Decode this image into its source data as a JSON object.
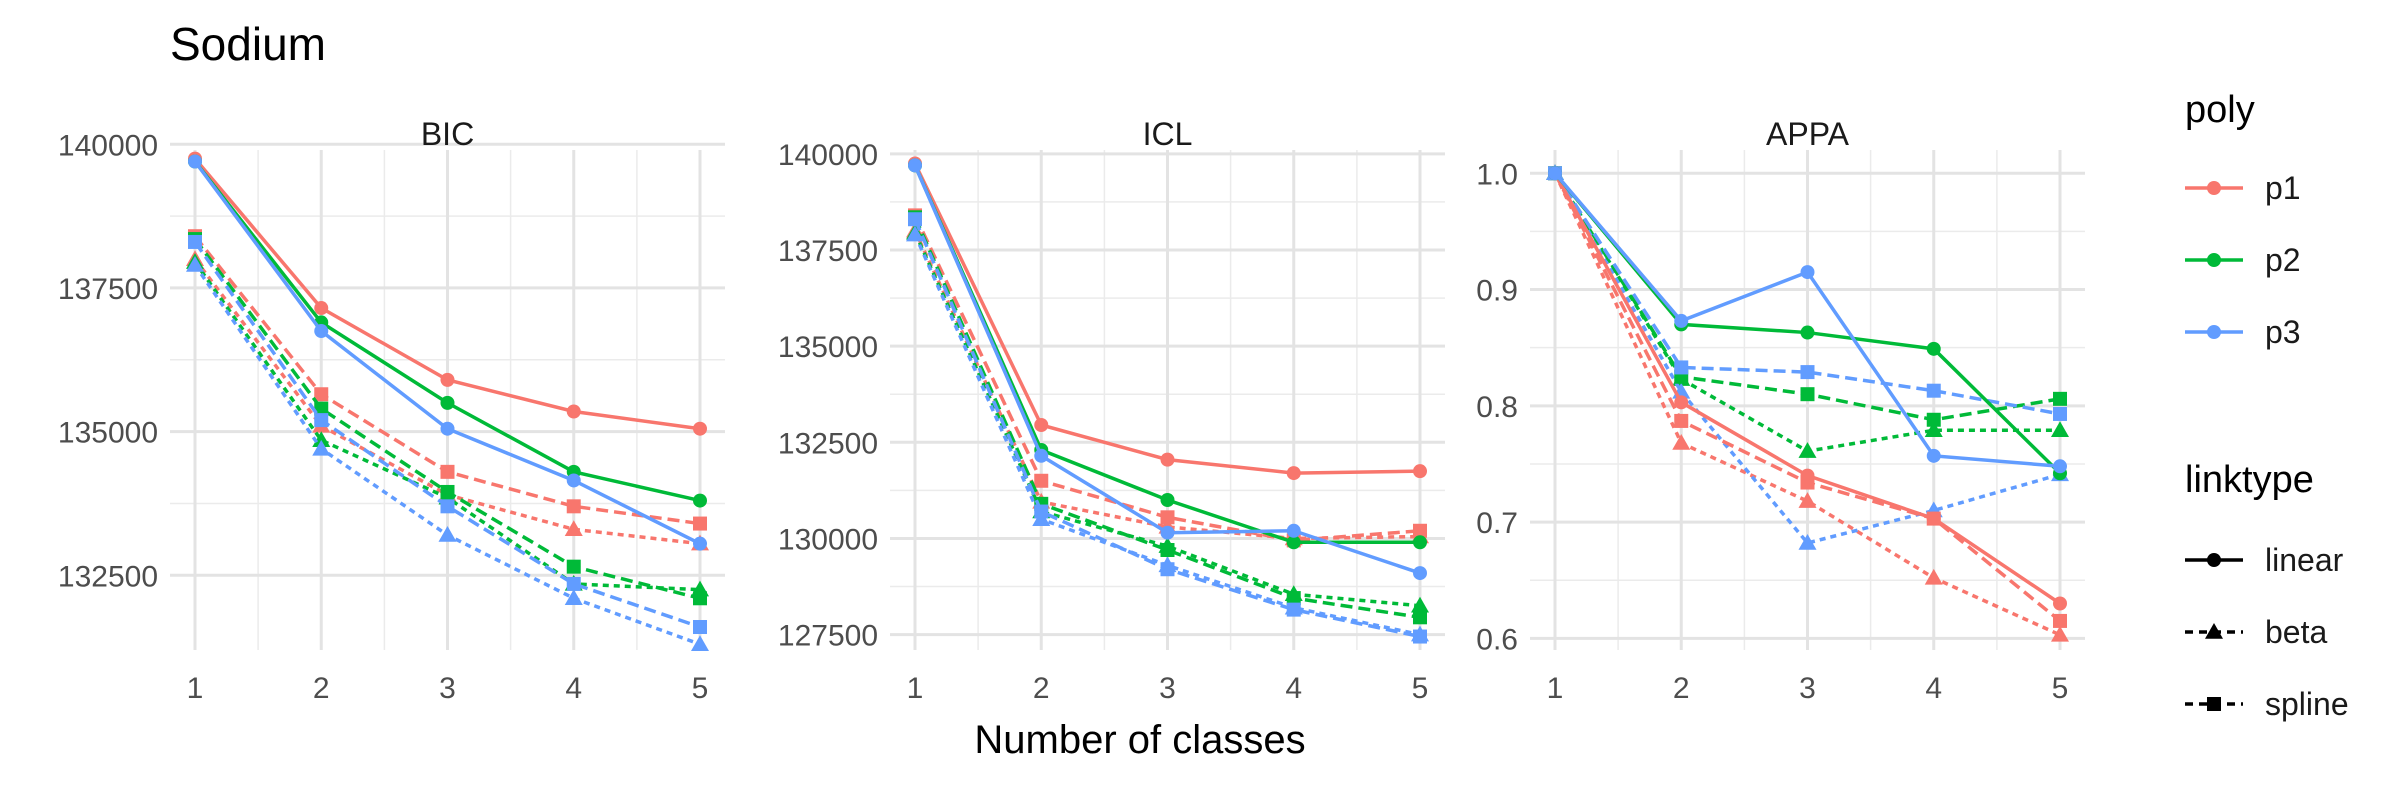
{
  "chart_data": {
    "type": "line",
    "title": "Sodium",
    "xlabel": "Number of classes",
    "x": [
      1,
      2,
      3,
      4,
      5
    ],
    "x_ticks": [
      "1",
      "2",
      "3",
      "4",
      "5"
    ],
    "grid": true,
    "colors": {
      "p1": "#F8766D",
      "p2": "#00BA38",
      "p3": "#619CFF"
    },
    "legend": {
      "placement": "right",
      "poly_title": "poly",
      "poly_items": [
        {
          "key": "p1",
          "label": "p1"
        },
        {
          "key": "p2",
          "label": "p2"
        },
        {
          "key": "p3",
          "label": "p3"
        }
      ],
      "link_title": "linktype",
      "link_items": [
        {
          "key": "linear",
          "label": "linear",
          "dash": "solid",
          "shape": "circle"
        },
        {
          "key": "beta",
          "label": "beta",
          "dash": "dashed",
          "shape": "triangle"
        },
        {
          "key": "spline",
          "label": "spline",
          "dash": "dashed",
          "shape": "square"
        }
      ]
    },
    "panels": [
      {
        "name": "BIC",
        "ylim": [
          131200,
          139900
        ],
        "y_ticks": [
          132500,
          135000,
          137500,
          140000
        ],
        "y_tick_labels": [
          "132500",
          "135000",
          "137500",
          "140000"
        ],
        "series": [
          {
            "poly": "p1",
            "link": "linear",
            "values": [
              139750,
              137150,
              135900,
              135350,
              135050
            ]
          },
          {
            "poly": "p2",
            "link": "linear",
            "values": [
              139700,
              136900,
              135500,
              134300,
              133800
            ]
          },
          {
            "poly": "p3",
            "link": "linear",
            "values": [
              139700,
              136750,
              135050,
              134150,
              133050
            ]
          },
          {
            "poly": "p1",
            "link": "beta",
            "values": [
              138000,
              135100,
              133900,
              133300,
              133050
            ]
          },
          {
            "poly": "p2",
            "link": "beta",
            "values": [
              137950,
              134850,
              133850,
              132350,
              132250
            ]
          },
          {
            "poly": "p3",
            "link": "beta",
            "values": [
              137900,
              134700,
              133200,
              132100,
              131300
            ]
          },
          {
            "poly": "p1",
            "link": "spline",
            "values": [
              138400,
              135650,
              134300,
              133700,
              133400
            ]
          },
          {
            "poly": "p2",
            "link": "spline",
            "values": [
              138350,
              135400,
              133950,
              132650,
              132100
            ]
          },
          {
            "poly": "p3",
            "link": "spline",
            "values": [
              138300,
              135200,
              133700,
              132350,
              131600
            ]
          }
        ]
      },
      {
        "name": "ICL",
        "ylim": [
          127100,
          140100
        ],
        "y_ticks": [
          127500,
          130000,
          132500,
          135000,
          137500,
          140000
        ],
        "y_tick_labels": [
          "127500",
          "130000",
          "132500",
          "135000",
          "137500",
          "140000"
        ],
        "series": [
          {
            "poly": "p1",
            "link": "linear",
            "values": [
              139750,
              132950,
              132050,
              131700,
              131750
            ]
          },
          {
            "poly": "p2",
            "link": "linear",
            "values": [
              139700,
              132300,
              131000,
              129900,
              129900
            ]
          },
          {
            "poly": "p3",
            "link": "linear",
            "values": [
              139700,
              132150,
              130150,
              130200,
              129100
            ]
          },
          {
            "poly": "p1",
            "link": "beta",
            "values": [
              138000,
              130950,
              130300,
              130000,
              130050
            ]
          },
          {
            "poly": "p2",
            "link": "beta",
            "values": [
              137950,
              130700,
              129800,
              128550,
              128250
            ]
          },
          {
            "poly": "p3",
            "link": "beta",
            "values": [
              137900,
              130500,
              129300,
              128200,
              127500
            ]
          },
          {
            "poly": "p1",
            "link": "spline",
            "values": [
              138400,
              131500,
              130550,
              129950,
              130200
            ]
          },
          {
            "poly": "p2",
            "link": "spline",
            "values": [
              138350,
              130900,
              129700,
              128450,
              127950
            ]
          },
          {
            "poly": "p3",
            "link": "spline",
            "values": [
              138300,
              130700,
              129200,
              128150,
              127450
            ]
          }
        ]
      },
      {
        "name": "APPA",
        "ylim": [
          0.59,
          1.02
        ],
        "y_ticks": [
          0.6,
          0.7,
          0.8,
          0.9,
          1.0
        ],
        "y_tick_labels": [
          "0.6",
          "0.7",
          "0.8",
          "0.9",
          "1.0"
        ],
        "series": [
          {
            "poly": "p1",
            "link": "linear",
            "values": [
              1.0,
              0.803,
              0.74,
              0.703,
              0.63
            ]
          },
          {
            "poly": "p2",
            "link": "linear",
            "values": [
              1.0,
              0.87,
              0.863,
              0.849,
              0.742
            ]
          },
          {
            "poly": "p3",
            "link": "linear",
            "values": [
              1.0,
              0.873,
              0.915,
              0.757,
              0.748
            ]
          },
          {
            "poly": "p1",
            "link": "beta",
            "values": [
              1.0,
              0.768,
              0.718,
              0.652,
              0.603
            ]
          },
          {
            "poly": "p2",
            "link": "beta",
            "values": [
              1.0,
              0.823,
              0.761,
              0.779,
              0.779
            ]
          },
          {
            "poly": "p3",
            "link": "beta",
            "values": [
              1.0,
              0.812,
              0.682,
              0.71,
              0.741
            ]
          },
          {
            "poly": "p1",
            "link": "spline",
            "values": [
              1.0,
              0.787,
              0.734,
              0.703,
              0.615
            ]
          },
          {
            "poly": "p2",
            "link": "spline",
            "values": [
              1.0,
              0.825,
              0.81,
              0.788,
              0.806
            ]
          },
          {
            "poly": "p3",
            "link": "spline",
            "values": [
              1.0,
              0.833,
              0.829,
              0.813,
              0.793
            ]
          }
        ]
      }
    ]
  }
}
